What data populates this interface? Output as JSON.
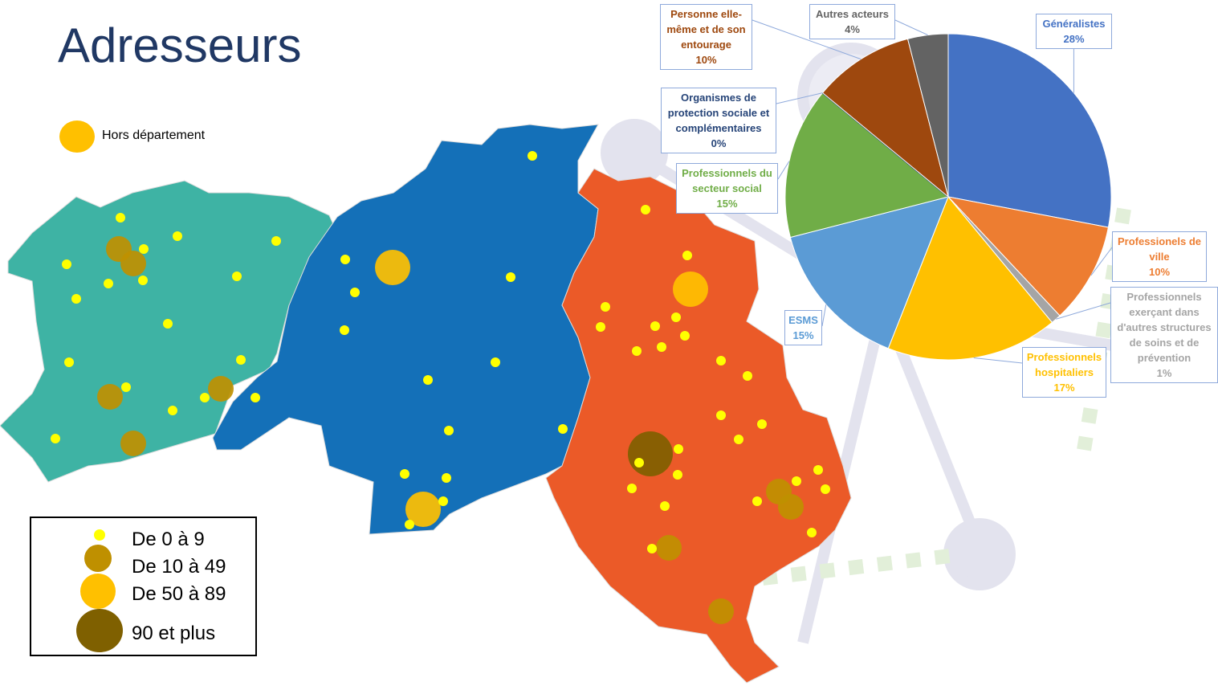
{
  "title": "Adresseurs",
  "map_legend": {
    "outside": "Hors département",
    "sizes": [
      "De 0 à 9",
      "De 10 à 49",
      "De 50 à 89",
      "90 et plus"
    ]
  },
  "chart_data": {
    "type": "pie",
    "series": [
      {
        "name": "Généralistes",
        "color": "#4472c4",
        "values": [
          28
        ],
        "value_labels": [
          "28%"
        ]
      },
      {
        "name": "Professionels de ville",
        "color": "#ed7d31",
        "values": [
          10
        ],
        "value_labels": [
          "10%"
        ]
      },
      {
        "name": "Professionnels exerçant dans d'autres structures de soins et de prévention",
        "color": "#a5a5a5",
        "values": [
          1
        ],
        "value_labels": [
          "1%"
        ]
      },
      {
        "name": "Professionnels hospitaliers",
        "color": "#ffc000",
        "values": [
          17
        ],
        "value_labels": [
          "17%"
        ]
      },
      {
        "name": "ESMS",
        "color": "#5b9bd5",
        "values": [
          15
        ],
        "value_labels": [
          "15%"
        ]
      },
      {
        "name": "Professionnels du secteur social",
        "color": "#70ad47",
        "values": [
          15
        ],
        "value_labels": [
          "15%"
        ]
      },
      {
        "name": "Organismes de protection sociale et complémentaires",
        "color": "#264478",
        "values": [
          0
        ],
        "value_labels": [
          "0%"
        ]
      },
      {
        "name": "Personne elle-même et de son entourage",
        "color": "#9e480e",
        "values": [
          10
        ],
        "value_labels": [
          "10%"
        ]
      },
      {
        "name": "Autres acteurs",
        "color": "#636363",
        "values": [
          4
        ],
        "value_labels": [
          "4%"
        ]
      }
    ]
  }
}
